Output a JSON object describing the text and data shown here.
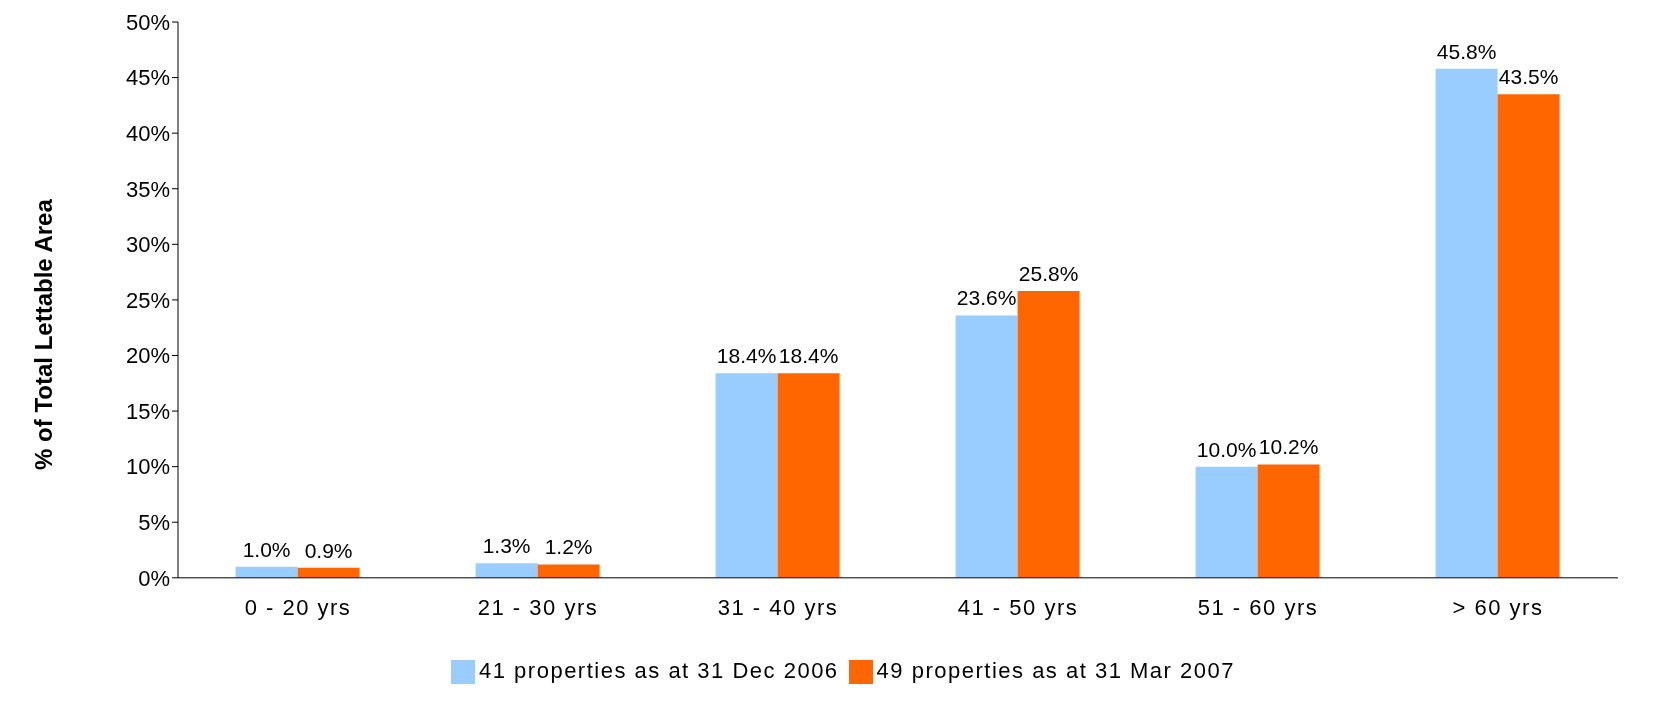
{
  "chart_data": {
    "type": "bar",
    "ylabel": "% of Total Lettable Area",
    "categories": [
      "0 - 20 yrs",
      "21 - 30 yrs",
      "31 - 40 yrs",
      "41 - 50 yrs",
      "51 - 60 yrs",
      "> 60 yrs"
    ],
    "series": [
      {
        "name": "41 properties as at 31 Dec 2006",
        "color": "#99ccff",
        "values": [
          1.0,
          1.3,
          18.4,
          23.6,
          10.0,
          45.8
        ],
        "value_labels": [
          "1.0%",
          "1.3%",
          "18.4%",
          "23.6%",
          "10.0%",
          "45.8%"
        ]
      },
      {
        "name": "49 properties as at 31 Mar 2007",
        "color": "#ff6600",
        "values": [
          0.9,
          1.2,
          18.4,
          25.8,
          10.2,
          43.5
        ],
        "value_labels": [
          "0.9%",
          "1.2%",
          "18.4%",
          "25.8%",
          "10.2%",
          "43.5%"
        ]
      }
    ],
    "ylim": [
      0,
      50
    ],
    "yticks": [
      {
        "value": 0,
        "label": "0%"
      },
      {
        "value": 5,
        "label": "5%"
      },
      {
        "value": 10,
        "label": "10%"
      },
      {
        "value": 15,
        "label": "15%"
      },
      {
        "value": 20,
        "label": "20%"
      },
      {
        "value": 25,
        "label": "25%"
      },
      {
        "value": 30,
        "label": "30%"
      },
      {
        "value": 35,
        "label": "35%"
      },
      {
        "value": 40,
        "label": "40%"
      },
      {
        "value": 45,
        "label": "45%"
      },
      {
        "value": 50,
        "label": "50%"
      }
    ],
    "grid": false,
    "legend": "bottom"
  }
}
